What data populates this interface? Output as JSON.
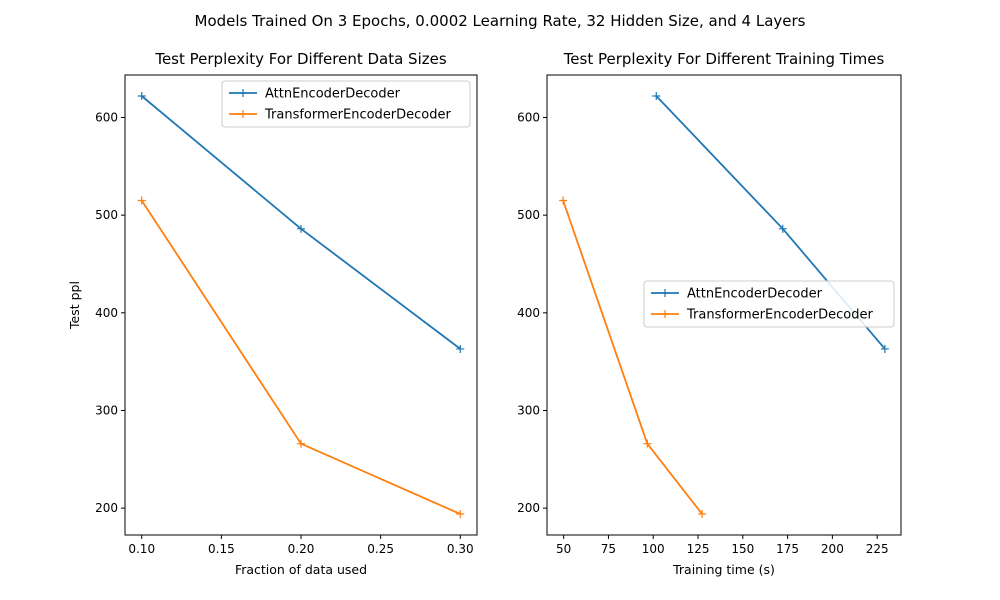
{
  "suptitle": "Models Trained On 3 Epochs, 0.0002 Learning Rate, 32 Hidden Size, and 4 Layers",
  "colors": {
    "attn": "#1f77b4",
    "transformer": "#ff7f0e"
  },
  "chart_data": [
    {
      "type": "line",
      "title": "Test Perplexity For Different Data Sizes",
      "xlabel": "Fraction of data used",
      "ylabel": "Test ppl",
      "xlim": [
        0.0895,
        0.3105
      ],
      "ylim": [
        172.5,
        643.5
      ],
      "xticks": [
        0.1,
        0.15,
        0.2,
        0.25,
        0.3
      ],
      "xtick_labels": [
        "0.10",
        "0.15",
        "0.20",
        "0.25",
        "0.30"
      ],
      "yticks": [
        200,
        300,
        400,
        500,
        600
      ],
      "ytick_labels": [
        "200",
        "300",
        "400",
        "500",
        "600"
      ],
      "grid": false,
      "legend": "upper right",
      "series": [
        {
          "name": "AttnEncoderDecoder",
          "color": "#1f77b4",
          "x": [
            0.1,
            0.2,
            0.3
          ],
          "y": [
            622,
            486,
            363
          ]
        },
        {
          "name": "TransformerEncoderDecoder",
          "color": "#ff7f0e",
          "x": [
            0.1,
            0.2,
            0.3
          ],
          "y": [
            515,
            266,
            194
          ]
        }
      ]
    },
    {
      "type": "line",
      "title": "Test Perplexity For Different Training Times",
      "xlabel": "Training time (s)",
      "ylabel": "",
      "xlim": [
        40.7,
        238.3
      ],
      "ylim": [
        172.5,
        643.5
      ],
      "xticks": [
        50,
        75,
        100,
        125,
        150,
        175,
        200,
        225
      ],
      "xtick_labels": [
        "50",
        "75",
        "100",
        "125",
        "150",
        "175",
        "200",
        "225"
      ],
      "yticks": [
        200,
        300,
        400,
        500,
        600
      ],
      "ytick_labels": [
        "200",
        "300",
        "400",
        "500",
        "600"
      ],
      "grid": false,
      "legend": "center right",
      "series": [
        {
          "name": "AttnEncoderDecoder",
          "color": "#1f77b4",
          "x": [
            101.7,
            172.3,
            229.3
          ],
          "y": [
            622,
            486,
            363
          ]
        },
        {
          "name": "TransformerEncoderDecoder",
          "color": "#ff7f0e",
          "x": [
            49.7,
            96.7,
            127.3
          ],
          "y": [
            515,
            266,
            194
          ]
        }
      ]
    }
  ]
}
